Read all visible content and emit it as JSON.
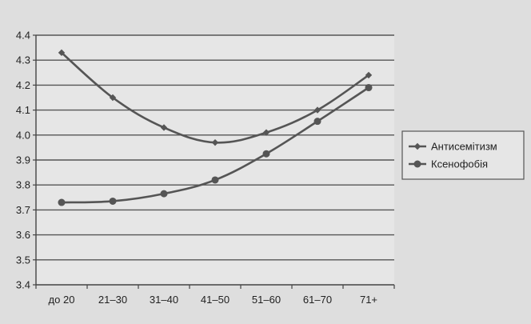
{
  "chart_data": {
    "type": "line",
    "title": "",
    "xlabel": "",
    "ylabel": "",
    "categories": [
      "до 20",
      "21–30",
      "31–40",
      "41–50",
      "51–60",
      "61–70",
      "71+"
    ],
    "yticks": [
      "3.4",
      "3.5",
      "3.6",
      "3.7",
      "3.8",
      "3.9",
      "4.0",
      "4.1",
      "4.2",
      "4.3",
      "4.4"
    ],
    "ylim": [
      3.4,
      4.4
    ],
    "grid": true,
    "legend_position": "right",
    "series": [
      {
        "name": "Антисемітизм",
        "marker": "diamond",
        "color": "#555555",
        "values": [
          4.33,
          4.15,
          4.03,
          3.97,
          4.01,
          4.1,
          4.24
        ]
      },
      {
        "name": "Ксенофобія",
        "marker": "circle",
        "color": "#555555",
        "values": [
          3.73,
          3.735,
          3.765,
          3.82,
          3.925,
          4.055,
          4.19
        ]
      }
    ]
  }
}
